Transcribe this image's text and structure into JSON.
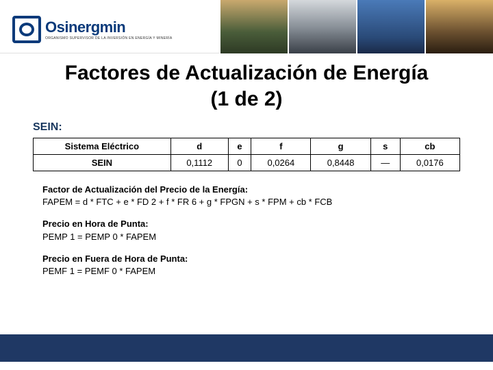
{
  "logo": {
    "word": "Osinergmin",
    "subtitle": "ORGANISMO SUPERVISOR DE LA INVERSIÓN EN ENERGÍA Y MINERÍA"
  },
  "title": {
    "line1": "Factores de Actualización de Energía",
    "line2": "(1 de 2)"
  },
  "section_label": "SEIN:",
  "table": {
    "type": "table",
    "columns": [
      "Sistema Eléctrico",
      "d",
      "e",
      "f",
      "g",
      "s",
      "cb"
    ],
    "rows": [
      [
        "SEIN",
        "0,1112",
        "0",
        "0,0264",
        "0,8448",
        "—",
        "0,0176"
      ]
    ],
    "border_color": "#000000",
    "header_fontweight": "bold",
    "cell_align": "center",
    "font_size_pt": 10
  },
  "formulas": {
    "factor_title": "Factor de Actualización del Precio de la Energía:",
    "factor_eq": "FAPEM = d * FTC + e * FD 2 + f * FR 6 + g * FPGN + s * FPM + cb * FCB",
    "punta_title": "Precio en Hora de Punta:",
    "punta_eq": "PEMP 1   = PEMP 0 * FAPEM",
    "fuera_title": "Precio en Fuera de Hora de Punta:",
    "fuera_eq": "PEMF 1   = PEMF 0 * FAPEM"
  },
  "colors": {
    "brand_navy": "#0a3a7a",
    "footer_navy": "#1f3864",
    "section_navy": "#17365d",
    "background": "#ffffff"
  }
}
